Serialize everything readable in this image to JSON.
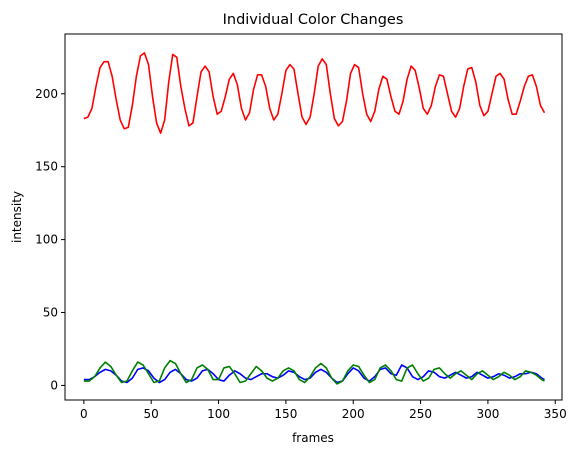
{
  "chart_data": {
    "type": "line",
    "title": "Individual Color Changes",
    "xlabel": "frames",
    "ylabel": "intensity",
    "xlim": [
      -14,
      355
    ],
    "ylim": [
      -10,
      241
    ],
    "x_ticks": [
      0,
      50,
      100,
      150,
      200,
      250,
      300,
      350
    ],
    "y_ticks": [
      0,
      50,
      100,
      150,
      200
    ],
    "grid": false,
    "legend": "none",
    "series": [
      {
        "color": "#ff0000",
        "points": [
          [
            0,
            183
          ],
          [
            3,
            184
          ],
          [
            6,
            190
          ],
          [
            9,
            205
          ],
          [
            12,
            218
          ],
          [
            15,
            222
          ],
          [
            18,
            222
          ],
          [
            21,
            212
          ],
          [
            24,
            196
          ],
          [
            27,
            182
          ],
          [
            30,
            176
          ],
          [
            33,
            177
          ],
          [
            36,
            192
          ],
          [
            39,
            212
          ],
          [
            42,
            226
          ],
          [
            45,
            228
          ],
          [
            48,
            220
          ],
          [
            51,
            198
          ],
          [
            54,
            180
          ],
          [
            57,
            173
          ],
          [
            60,
            182
          ],
          [
            63,
            208
          ],
          [
            66,
            227
          ],
          [
            69,
            225
          ],
          [
            72,
            205
          ],
          [
            75,
            190
          ],
          [
            78,
            178
          ],
          [
            81,
            180
          ],
          [
            84,
            198
          ],
          [
            87,
            215
          ],
          [
            90,
            219
          ],
          [
            93,
            215
          ],
          [
            96,
            198
          ],
          [
            99,
            186
          ],
          [
            102,
            188
          ],
          [
            105,
            198
          ],
          [
            108,
            210
          ],
          [
            111,
            214
          ],
          [
            114,
            206
          ],
          [
            117,
            190
          ],
          [
            120,
            182
          ],
          [
            123,
            187
          ],
          [
            126,
            203
          ],
          [
            129,
            213
          ],
          [
            132,
            213
          ],
          [
            135,
            205
          ],
          [
            138,
            190
          ],
          [
            141,
            182
          ],
          [
            144,
            186
          ],
          [
            147,
            200
          ],
          [
            150,
            216
          ],
          [
            153,
            220
          ],
          [
            156,
            217
          ],
          [
            159,
            200
          ],
          [
            162,
            184
          ],
          [
            165,
            179
          ],
          [
            168,
            184
          ],
          [
            171,
            200
          ],
          [
            174,
            219
          ],
          [
            177,
            224
          ],
          [
            180,
            220
          ],
          [
            183,
            200
          ],
          [
            186,
            183
          ],
          [
            189,
            178
          ],
          [
            192,
            181
          ],
          [
            195,
            195
          ],
          [
            198,
            214
          ],
          [
            201,
            220
          ],
          [
            204,
            218
          ],
          [
            207,
            200
          ],
          [
            210,
            186
          ],
          [
            213,
            181
          ],
          [
            216,
            188
          ],
          [
            219,
            203
          ],
          [
            222,
            212
          ],
          [
            225,
            210
          ],
          [
            228,
            198
          ],
          [
            231,
            188
          ],
          [
            234,
            186
          ],
          [
            237,
            195
          ],
          [
            240,
            210
          ],
          [
            243,
            219
          ],
          [
            246,
            216
          ],
          [
            249,
            204
          ],
          [
            252,
            190
          ],
          [
            255,
            186
          ],
          [
            258,
            192
          ],
          [
            261,
            205
          ],
          [
            264,
            213
          ],
          [
            267,
            212
          ],
          [
            270,
            200
          ],
          [
            273,
            188
          ],
          [
            276,
            184
          ],
          [
            279,
            190
          ],
          [
            282,
            205
          ],
          [
            285,
            217
          ],
          [
            288,
            218
          ],
          [
            291,
            208
          ],
          [
            294,
            192
          ],
          [
            297,
            185
          ],
          [
            300,
            188
          ],
          [
            303,
            200
          ],
          [
            306,
            212
          ],
          [
            309,
            214
          ],
          [
            312,
            210
          ],
          [
            315,
            196
          ],
          [
            318,
            186
          ],
          [
            321,
            186
          ],
          [
            324,
            195
          ],
          [
            327,
            205
          ],
          [
            330,
            212
          ],
          [
            333,
            213
          ],
          [
            336,
            205
          ],
          [
            339,
            192
          ],
          [
            342,
            187
          ]
        ]
      },
      {
        "color": "#0000ff",
        "points": [
          [
            0,
            4
          ],
          [
            4,
            4
          ],
          [
            8,
            6
          ],
          [
            12,
            9
          ],
          [
            16,
            11
          ],
          [
            20,
            10
          ],
          [
            24,
            7
          ],
          [
            28,
            3
          ],
          [
            32,
            2
          ],
          [
            36,
            5
          ],
          [
            40,
            11
          ],
          [
            44,
            12
          ],
          [
            48,
            10
          ],
          [
            52,
            5
          ],
          [
            56,
            2
          ],
          [
            60,
            4
          ],
          [
            64,
            9
          ],
          [
            68,
            11
          ],
          [
            72,
            8
          ],
          [
            76,
            4
          ],
          [
            80,
            3
          ],
          [
            84,
            5
          ],
          [
            88,
            10
          ],
          [
            92,
            11
          ],
          [
            96,
            8
          ],
          [
            100,
            4
          ],
          [
            104,
            3
          ],
          [
            108,
            7
          ],
          [
            112,
            10
          ],
          [
            116,
            8
          ],
          [
            120,
            5
          ],
          [
            124,
            4
          ],
          [
            128,
            6
          ],
          [
            132,
            8
          ],
          [
            136,
            8
          ],
          [
            140,
            6
          ],
          [
            144,
            5
          ],
          [
            148,
            7
          ],
          [
            152,
            10
          ],
          [
            156,
            9
          ],
          [
            160,
            6
          ],
          [
            164,
            4
          ],
          [
            168,
            5
          ],
          [
            172,
            9
          ],
          [
            176,
            11
          ],
          [
            180,
            9
          ],
          [
            184,
            5
          ],
          [
            188,
            2
          ],
          [
            192,
            3
          ],
          [
            196,
            8
          ],
          [
            200,
            12
          ],
          [
            204,
            10
          ],
          [
            208,
            5
          ],
          [
            212,
            3
          ],
          [
            216,
            6
          ],
          [
            220,
            11
          ],
          [
            224,
            12
          ],
          [
            228,
            8
          ],
          [
            232,
            7
          ],
          [
            236,
            14
          ],
          [
            240,
            12
          ],
          [
            244,
            6
          ],
          [
            248,
            4
          ],
          [
            252,
            6
          ],
          [
            256,
            10
          ],
          [
            260,
            9
          ],
          [
            264,
            6
          ],
          [
            268,
            5
          ],
          [
            272,
            7
          ],
          [
            276,
            9
          ],
          [
            280,
            7
          ],
          [
            284,
            5
          ],
          [
            288,
            6
          ],
          [
            292,
            9
          ],
          [
            296,
            7
          ],
          [
            300,
            5
          ],
          [
            304,
            6
          ],
          [
            308,
            8
          ],
          [
            312,
            7
          ],
          [
            316,
            5
          ],
          [
            320,
            6
          ],
          [
            324,
            8
          ],
          [
            328,
            8
          ],
          [
            332,
            9
          ],
          [
            336,
            8
          ],
          [
            340,
            5
          ],
          [
            342,
            4
          ]
        ]
      },
      {
        "color": "#008000",
        "points": [
          [
            0,
            3
          ],
          [
            4,
            3
          ],
          [
            8,
            6
          ],
          [
            12,
            12
          ],
          [
            16,
            16
          ],
          [
            20,
            13
          ],
          [
            24,
            7
          ],
          [
            28,
            2
          ],
          [
            32,
            3
          ],
          [
            36,
            10
          ],
          [
            40,
            16
          ],
          [
            44,
            14
          ],
          [
            48,
            8
          ],
          [
            52,
            2
          ],
          [
            56,
            3
          ],
          [
            60,
            12
          ],
          [
            64,
            17
          ],
          [
            68,
            15
          ],
          [
            72,
            8
          ],
          [
            76,
            2
          ],
          [
            80,
            4
          ],
          [
            84,
            12
          ],
          [
            88,
            14
          ],
          [
            92,
            11
          ],
          [
            96,
            4
          ],
          [
            100,
            4
          ],
          [
            104,
            12
          ],
          [
            108,
            13
          ],
          [
            112,
            8
          ],
          [
            116,
            2
          ],
          [
            120,
            3
          ],
          [
            124,
            8
          ],
          [
            128,
            13
          ],
          [
            132,
            10
          ],
          [
            136,
            5
          ],
          [
            140,
            3
          ],
          [
            144,
            5
          ],
          [
            148,
            10
          ],
          [
            152,
            12
          ],
          [
            156,
            10
          ],
          [
            160,
            4
          ],
          [
            164,
            2
          ],
          [
            168,
            6
          ],
          [
            172,
            12
          ],
          [
            176,
            15
          ],
          [
            180,
            12
          ],
          [
            184,
            5
          ],
          [
            188,
            1
          ],
          [
            192,
            3
          ],
          [
            196,
            10
          ],
          [
            200,
            14
          ],
          [
            204,
            13
          ],
          [
            208,
            7
          ],
          [
            212,
            2
          ],
          [
            216,
            4
          ],
          [
            220,
            12
          ],
          [
            224,
            14
          ],
          [
            228,
            10
          ],
          [
            232,
            4
          ],
          [
            236,
            3
          ],
          [
            240,
            12
          ],
          [
            244,
            14
          ],
          [
            248,
            8
          ],
          [
            252,
            3
          ],
          [
            256,
            5
          ],
          [
            260,
            11
          ],
          [
            264,
            12
          ],
          [
            268,
            8
          ],
          [
            272,
            5
          ],
          [
            276,
            8
          ],
          [
            280,
            10
          ],
          [
            284,
            7
          ],
          [
            288,
            4
          ],
          [
            292,
            8
          ],
          [
            296,
            10
          ],
          [
            300,
            7
          ],
          [
            304,
            4
          ],
          [
            308,
            6
          ],
          [
            312,
            9
          ],
          [
            316,
            7
          ],
          [
            320,
            4
          ],
          [
            324,
            6
          ],
          [
            328,
            10
          ],
          [
            332,
            9
          ],
          [
            336,
            7
          ],
          [
            340,
            4
          ],
          [
            342,
            3
          ]
        ]
      }
    ]
  }
}
